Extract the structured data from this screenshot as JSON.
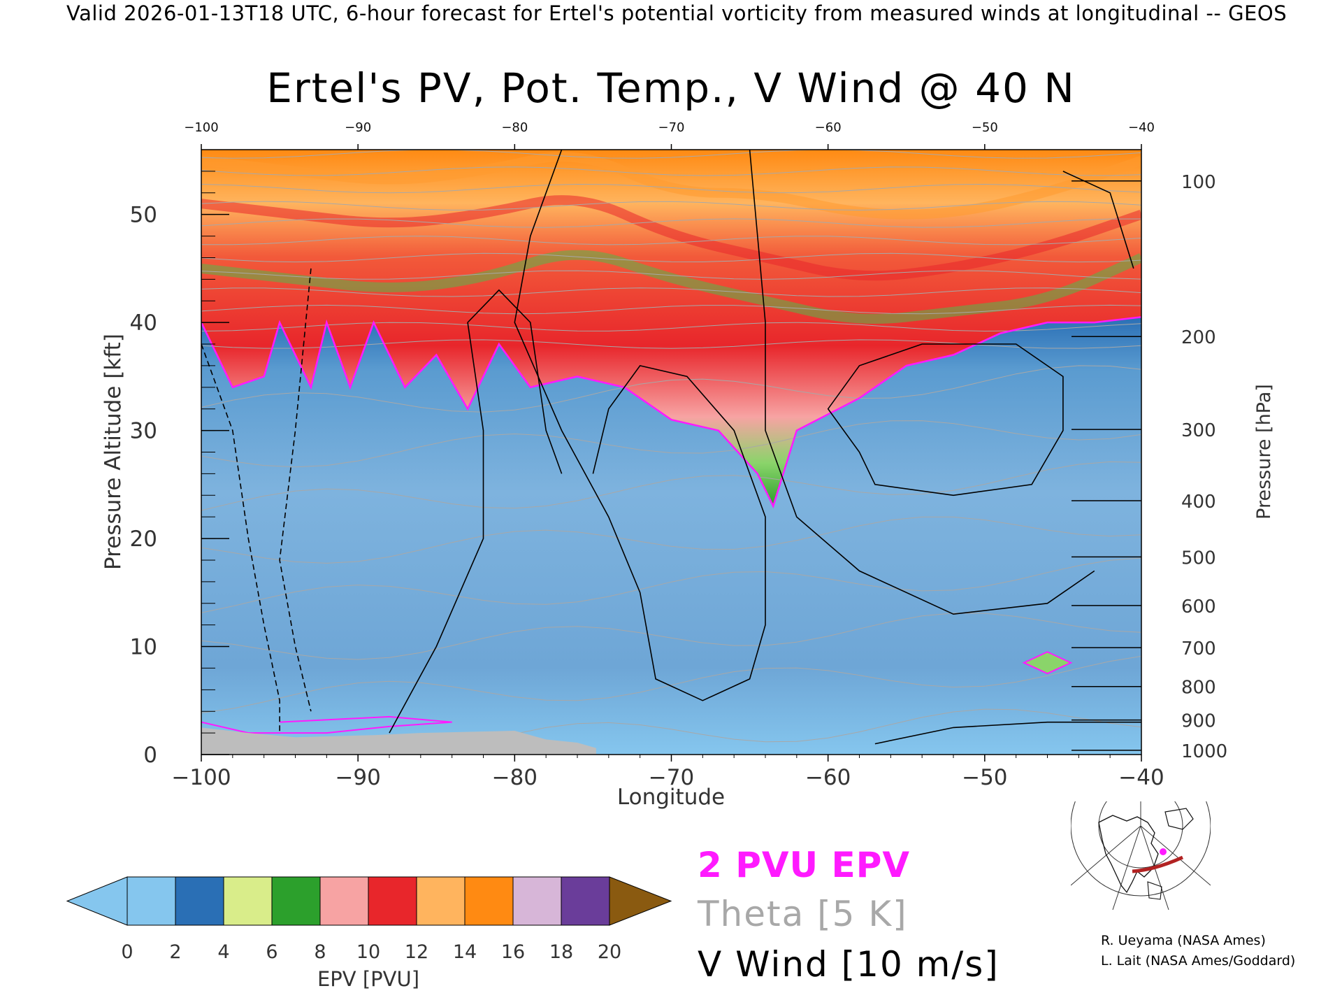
{
  "header": "Valid 2026-01-13T18 UTC, 6-hour forecast for Ertel's potential vorticity from measured winds at longitudinal -- GEOS",
  "title": "Ertel's PV, Pot. Temp., V Wind @ 40 N",
  "legend": {
    "epv_line": "2 PVU EPV",
    "theta": "Theta [5 K]",
    "vwind": "V Wind [10 m/s]"
  },
  "credits": [
    "R. Ueyama (NASA Ames)",
    "L. Lait (NASA Ames/Goddard)"
  ],
  "colors": {
    "epv_contour": "#ff1aff",
    "terrain": "#bdbdbd",
    "theta_lines": "#a8a8a8",
    "wind_lines": "#000000",
    "cross_section_path": "#b22222",
    "location_marker": "#ff1aff"
  },
  "chart_data": {
    "type": "heatmap",
    "title": "Ertel's PV, Pot. Temp., V Wind @ 40 N",
    "xlabel": "Longitude",
    "ylabel": "Pressure Altitude [kft]",
    "ylabel_right": "Pressure [hPa]",
    "xlim": [
      -100,
      -40
    ],
    "ylim": [
      0,
      56
    ],
    "x_ticks": [
      -100,
      -90,
      -80,
      -70,
      -60,
      -50,
      -40
    ],
    "x_tick_labels": [
      "−100",
      "−90",
      "−80",
      "−70",
      "−60",
      "−50",
      "−40"
    ],
    "top_x_tick_labels": [
      "−100",
      "−90",
      "−80",
      "−70",
      "−60",
      "−50",
      "−40"
    ],
    "y_ticks": [
      0,
      10,
      20,
      30,
      40,
      50
    ],
    "pressure_ticks": [
      {
        "hpa": 1000,
        "kft": 0.4
      },
      {
        "hpa": 900,
        "kft": 3.2
      },
      {
        "hpa": 800,
        "kft": 6.3
      },
      {
        "hpa": 700,
        "kft": 9.9
      },
      {
        "hpa": 600,
        "kft": 13.8
      },
      {
        "hpa": 500,
        "kft": 18.3
      },
      {
        "hpa": 400,
        "kft": 23.5
      },
      {
        "hpa": 300,
        "kft": 30.1
      },
      {
        "hpa": 200,
        "kft": 38.7
      },
      {
        "hpa": 100,
        "kft": 53.1
      }
    ],
    "colorbar": {
      "label": "EPV [PVU]",
      "ticks": [
        0,
        2,
        4,
        6,
        8,
        10,
        12,
        14,
        16,
        18,
        20
      ],
      "colors": [
        "#85c6ee",
        "#2a6fb5",
        "#d9ed8a",
        "#2ca02c",
        "#f7a3a3",
        "#e8262b",
        "#ffb45e",
        "#ff8a12",
        "#d7b6d8",
        "#6a3d9a",
        "#fff6a0"
      ],
      "under_color": "#85c6ee",
      "over_color": "#8a5a10"
    },
    "pv2_boundary": [
      {
        "lon": -100,
        "kft": 40
      },
      {
        "lon": -98,
        "kft": 34
      },
      {
        "lon": -96,
        "kft": 35
      },
      {
        "lon": -95,
        "kft": 40
      },
      {
        "lon": -93,
        "kft": 34
      },
      {
        "lon": -92,
        "kft": 40
      },
      {
        "lon": -90.5,
        "kft": 34
      },
      {
        "lon": -89,
        "kft": 40
      },
      {
        "lon": -87,
        "kft": 34
      },
      {
        "lon": -85,
        "kft": 37
      },
      {
        "lon": -83,
        "kft": 32
      },
      {
        "lon": -81,
        "kft": 38
      },
      {
        "lon": -79,
        "kft": 34
      },
      {
        "lon": -76,
        "kft": 35
      },
      {
        "lon": -73,
        "kft": 34
      },
      {
        "lon": -70,
        "kft": 31
      },
      {
        "lon": -67,
        "kft": 30
      },
      {
        "lon": -64.5,
        "kft": 26
      },
      {
        "lon": -63.5,
        "kft": 23
      },
      {
        "lon": -62,
        "kft": 30
      },
      {
        "lon": -58,
        "kft": 33
      },
      {
        "lon": -55,
        "kft": 36
      },
      {
        "lon": -52,
        "kft": 37
      },
      {
        "lon": -49,
        "kft": 39
      },
      {
        "lon": -46,
        "kft": 40
      },
      {
        "lon": -43,
        "kft": 40
      },
      {
        "lon": -40,
        "kft": 40.5
      }
    ],
    "pv_levels_above": [
      {
        "pvu": 5,
        "kft": [
          45,
          44,
          43,
          44,
          47,
          44,
          42,
          40,
          41,
          42,
          46
        ]
      },
      {
        "pvu": 8,
        "kft": [
          51,
          50,
          49,
          50,
          52,
          48,
          46,
          44,
          45,
          47,
          50
        ]
      },
      {
        "pvu": 11,
        "kft": [
          55,
          54,
          53,
          54,
          56,
          52,
          52,
          50,
          50,
          52,
          55
        ]
      }
    ]
  }
}
